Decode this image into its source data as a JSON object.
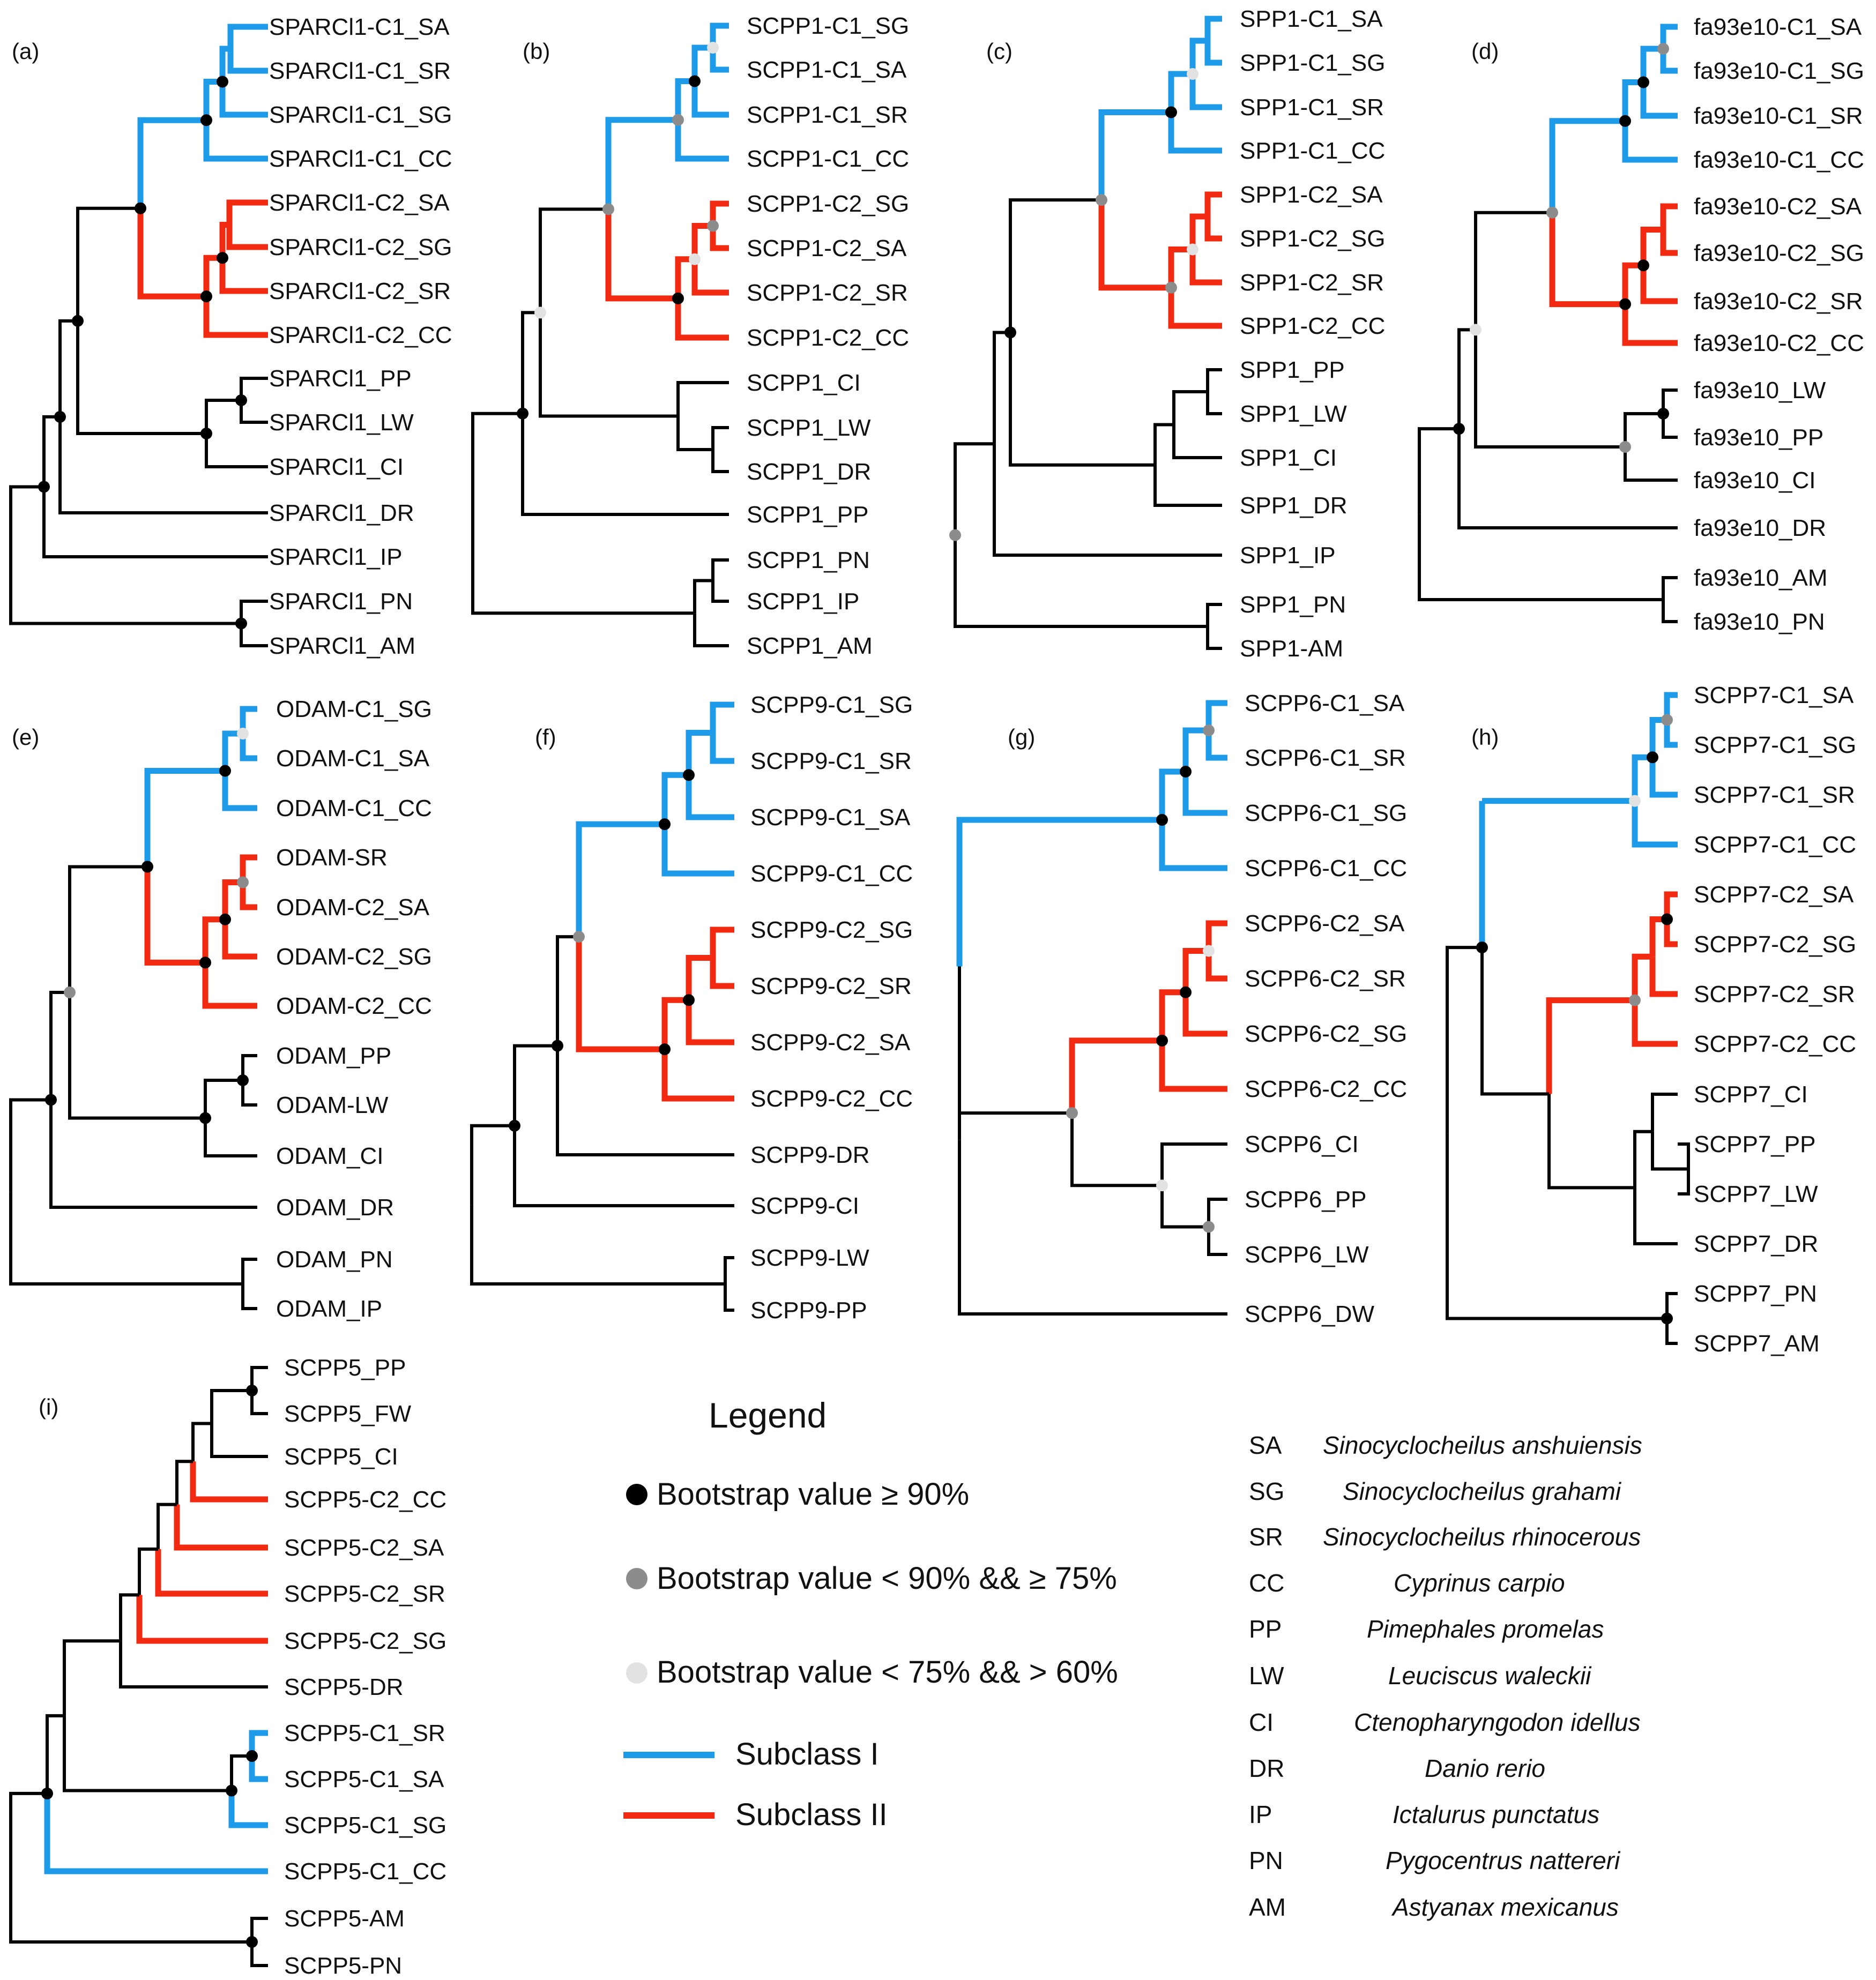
{
  "colors": {
    "subclass1": "#1E9BE8",
    "subclass2": "#F22A12",
    "branch": "#000000",
    "bs_high": "#000000",
    "bs_mid": "#8C8C8C",
    "bs_low": "#E2E2E2"
  },
  "panels": [
    {
      "label": "(a)",
      "leaves": [
        "SPARCl1-C1_SA",
        "SPARCl1-C1_SR",
        "SPARCl1-C1_SG",
        "SPARCl1-C1_CC",
        "SPARCl1-C2_SA",
        "SPARCl1-C2_SG",
        "SPARCl1-C2_SR",
        "SPARCl1-C2_CC",
        "SPARCl1_PP",
        "SPARCl1_LW",
        "SPARCl1_CI",
        "SPARCl1_DR",
        "SPARCl1_IP",
        "SPARCl1_PN",
        "SPARCl1_AM"
      ]
    },
    {
      "label": "(b)",
      "leaves": [
        "SCPP1-C1_SG",
        "SCPP1-C1_SA",
        "SCPP1-C1_SR",
        "SCPP1-C1_CC",
        "SCPP1-C2_SG",
        "SCPP1-C2_SA",
        "SCPP1-C2_SR",
        "SCPP1-C2_CC",
        "SCPP1_CI",
        "SCPP1_LW",
        "SCPP1_DR",
        "SCPP1_PP",
        "SCPP1_PN",
        "SCPP1_IP",
        "SCPP1_AM"
      ]
    },
    {
      "label": "(c)",
      "leaves": [
        "SPP1-C1_SA",
        "SPP1-C1_SG",
        "SPP1-C1_SR",
        "SPP1-C1_CC",
        "SPP1-C2_SA",
        "SPP1-C2_SG",
        "SPP1-C2_SR",
        "SPP1-C2_CC",
        "SPP1_PP",
        "SPP1_LW",
        "SPP1_CI",
        "SPP1_DR",
        "SPP1_IP",
        "SPP1_PN",
        "SPP1-AM"
      ]
    },
    {
      "label": "(d)",
      "leaves": [
        "fa93e10-C1_SA",
        "fa93e10-C1_SG",
        "fa93e10-C1_SR",
        "fa93e10-C1_CC",
        "fa93e10-C2_SA",
        "fa93e10-C2_SG",
        "fa93e10-C2_SR",
        "fa93e10-C2_CC",
        "fa93e10_LW",
        "fa93e10_PP",
        "fa93e10_CI",
        "fa93e10_DR",
        "fa93e10_AM",
        "fa93e10_PN"
      ]
    },
    {
      "label": "(e)",
      "leaves": [
        "ODAM-C1_SG",
        "ODAM-C1_SA",
        "ODAM-C1_CC",
        "ODAM-SR",
        "ODAM-C2_SA",
        "ODAM-C2_SG",
        "ODAM-C2_CC",
        "ODAM_PP",
        "ODAM-LW",
        "ODAM_CI",
        "ODAM_DR",
        "ODAM_PN",
        "ODAM_IP"
      ]
    },
    {
      "label": "(f)",
      "leaves": [
        "SCPP9-C1_SG",
        "SCPP9-C1_SR",
        "SCPP9-C1_SA",
        "SCPP9-C1_CC",
        "SCPP9-C2_SG",
        "SCPP9-C2_SR",
        "SCPP9-C2_SA",
        "SCPP9-C2_CC",
        "SCPP9-DR",
        "SCPP9-CI",
        "SCPP9-LW",
        "SCPP9-PP"
      ]
    },
    {
      "label": "(g)",
      "leaves": [
        "SCPP6-C1_SA",
        "SCPP6-C1_SR",
        "SCPP6-C1_SG",
        "SCPP6-C1_CC",
        "SCPP6-C2_SA",
        "SCPP6-C2_SR",
        "SCPP6-C2_SG",
        "SCPP6-C2_CC",
        "SCPP6_CI",
        "SCPP6_PP",
        "SCPP6_LW",
        "SCPP6_DW"
      ]
    },
    {
      "label": "(h)",
      "leaves": [
        "SCPP7-C1_SA",
        "SCPP7-C1_SG",
        "SCPP7-C1_SR",
        "SCPP7-C1_CC",
        "SCPP7-C2_SA",
        "SCPP7-C2_SG",
        "SCPP7-C2_SR",
        "SCPP7-C2_CC",
        "SCPP7_CI",
        "SCPP7_PP",
        "SCPP7_LW",
        "SCPP7_DR",
        "SCPP7_PN",
        "SCPP7_AM"
      ]
    },
    {
      "label": "(i)",
      "leaves": [
        "SCPP5_PP",
        "SCPP5_FW",
        "SCPP5_CI",
        "SCPP5-C2_CC",
        "SCPP5-C2_SA",
        "SCPP5-C2_SR",
        "SCPP5-C2_SG",
        "SCPP5-DR",
        "SCPP5-C1_SR",
        "SCPP5-C1_SA",
        "SCPP5-C1_SG",
        "SCPP5-C1_CC",
        "SCPP5-AM",
        "SCPP5-PN"
      ]
    }
  ],
  "legend": {
    "title": "Legend",
    "bootstrap": [
      {
        "label": "Bootstrap value ≥ 90%",
        "color": "#000000"
      },
      {
        "label": "Bootstrap value < 90% && ≥ 75%",
        "color": "#8C8C8C"
      },
      {
        "label": "Bootstrap value <  75% && > 60%",
        "color": "#E2E2E2"
      }
    ],
    "subclasses": [
      {
        "label": "Subclass I",
        "color": "#1E9BE8"
      },
      {
        "label": "Subclass II",
        "color": "#F22A12"
      }
    ]
  },
  "species": [
    {
      "abbr": "SA",
      "name": "Sinocyclocheilus anshuiensis"
    },
    {
      "abbr": "SG",
      "name": "Sinocyclocheilus grahami"
    },
    {
      "abbr": "SR",
      "name": "Sinocyclocheilus rhinocerous"
    },
    {
      "abbr": "CC",
      "name": "Cyprinus carpio"
    },
    {
      "abbr": "PP",
      "name": "Pimephales promelas"
    },
    {
      "abbr": "LW",
      "name": "Leuciscus waleckii"
    },
    {
      "abbr": "CI",
      "name": "Ctenopharyngodon idellus"
    },
    {
      "abbr": "DR",
      "name": "Danio rerio"
    },
    {
      "abbr": "IP",
      "name": "Ictalurus punctatus"
    },
    {
      "abbr": "PN",
      "name": "Pygocentrus nattereri"
    },
    {
      "abbr": "AM",
      "name": "Astyanax mexicanus"
    }
  ]
}
